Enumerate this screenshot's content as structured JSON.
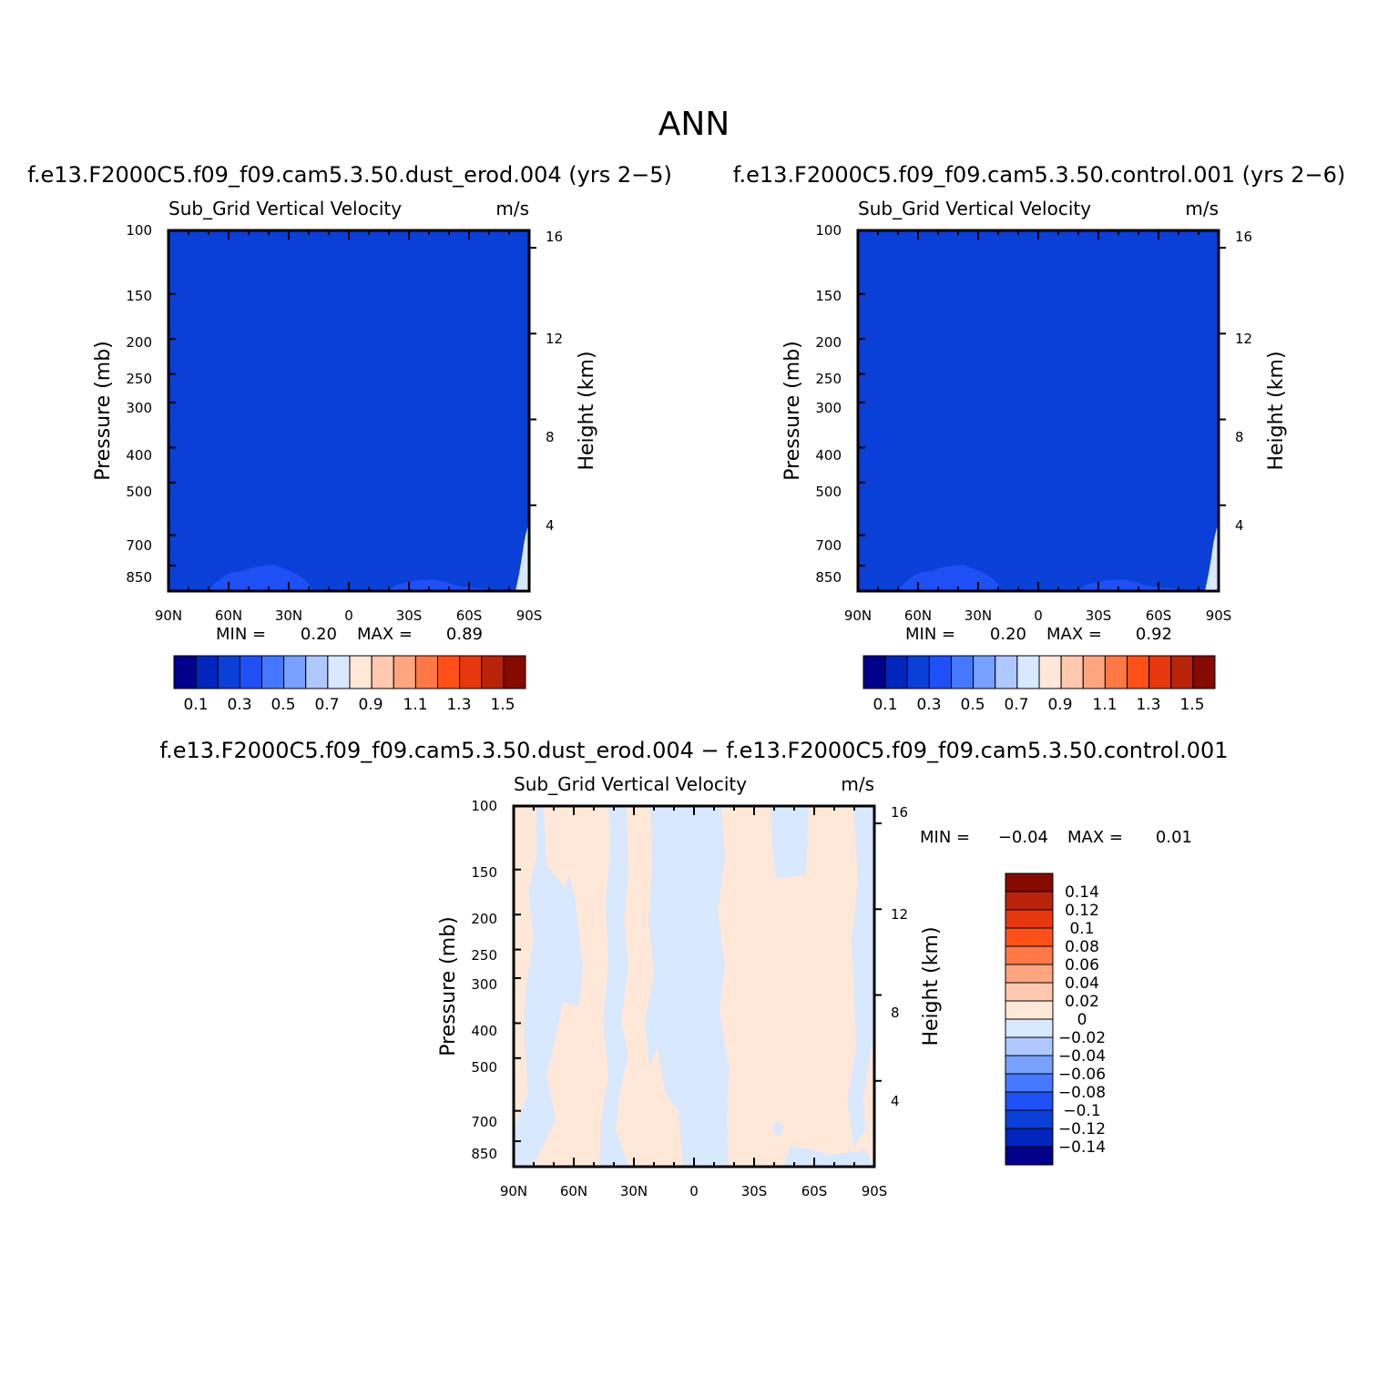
{
  "figure_title": "ANN",
  "chart_data": [
    {
      "type": "heatmap",
      "title": "f.e13.F2000C5.f09_f09.cam5.3.50.dust_erod.004 (yrs 2−5)",
      "variable": "Sub_Grid Vertical Velocity",
      "units": "m/s",
      "ylabel": "Pressure (mb)",
      "y2label": "Height (km)",
      "x_ticks": [
        "90N",
        "60N",
        "30N",
        "0",
        "30S",
        "60S",
        "90S"
      ],
      "y_ticks": [
        "100",
        "150",
        "200",
        "250",
        "300",
        "400",
        "500",
        "700",
        "850"
      ],
      "y2_ticks": [
        "16",
        "12",
        "8",
        "4"
      ],
      "ylim": [
        1000,
        100
      ],
      "y_scale": "log",
      "min_label": "MIN =",
      "min_value": "0.20",
      "max_label": "MAX =",
      "max_value": "0.89",
      "levels": [
        0.1,
        0.2,
        0.3,
        0.4,
        0.5,
        0.6,
        0.7,
        0.8,
        0.9,
        1.0,
        1.1,
        1.2,
        1.3,
        1.4,
        1.5
      ],
      "colorbar_labels": [
        "0.1",
        "0.3",
        "0.5",
        "0.7",
        "0.9",
        "1.1",
        "1.3",
        "1.5"
      ],
      "field_description": "nearly uniform 0.2-0.3 band; small 0.3-0.4 patches near the surface around 45N and 40S; values above 0.7 near 90S surface"
    },
    {
      "type": "heatmap",
      "title": "f.e13.F2000C5.f09_f09.cam5.3.50.control.001 (yrs 2−6)",
      "variable": "Sub_Grid Vertical Velocity",
      "units": "m/s",
      "ylabel": "Pressure (mb)",
      "y2label": "Height (km)",
      "x_ticks": [
        "90N",
        "60N",
        "30N",
        "0",
        "30S",
        "60S",
        "90S"
      ],
      "y_ticks": [
        "100",
        "150",
        "200",
        "250",
        "300",
        "400",
        "500",
        "700",
        "850"
      ],
      "y2_ticks": [
        "16",
        "12",
        "8",
        "4"
      ],
      "ylim": [
        1000,
        100
      ],
      "y_scale": "log",
      "min_label": "MIN =",
      "min_value": "0.20",
      "max_label": "MAX =",
      "max_value": "0.92",
      "levels": [
        0.1,
        0.2,
        0.3,
        0.4,
        0.5,
        0.6,
        0.7,
        0.8,
        0.9,
        1.0,
        1.1,
        1.2,
        1.3,
        1.4,
        1.5
      ],
      "colorbar_labels": [
        "0.1",
        "0.3",
        "0.5",
        "0.7",
        "0.9",
        "1.1",
        "1.3",
        "1.5"
      ],
      "field_description": "nearly uniform 0.2-0.3 band; small 0.3-0.4 patches near the surface around 45N and 40S; values above 0.7 near 90S surface"
    },
    {
      "type": "heatmap",
      "title": "f.e13.F2000C5.f09_f09.cam5.3.50.dust_erod.004 − f.e13.F2000C5.f09_f09.cam5.3.50.control.001",
      "variable": "Sub_Grid Vertical Velocity",
      "units": "m/s",
      "ylabel": "Pressure (mb)",
      "y2label": "Height (km)",
      "x_ticks": [
        "90N",
        "60N",
        "30N",
        "0",
        "30S",
        "60S",
        "90S"
      ],
      "y_ticks": [
        "100",
        "150",
        "200",
        "250",
        "300",
        "400",
        "500",
        "700",
        "850"
      ],
      "y2_ticks": [
        "16",
        "12",
        "8",
        "4"
      ],
      "ylim": [
        1000,
        100
      ],
      "y_scale": "log",
      "min_label": "MIN =",
      "min_value": "−0.04",
      "max_label": "MAX =",
      "max_value": "0.01",
      "levels": [
        -0.14,
        -0.12,
        -0.1,
        -0.08,
        -0.06,
        -0.04,
        -0.02,
        0,
        0.02,
        0.04,
        0.06,
        0.08,
        0.1,
        0.12,
        0.14
      ],
      "colorbar_labels": [
        "0.14",
        "0.12",
        "0.1",
        "0.08",
        "0.06",
        "0.04",
        "0.02",
        "0",
        "−0.02",
        "−0.04",
        "−0.06",
        "−0.08",
        "−0.1",
        "−0.12",
        "−0.14"
      ],
      "field_description": "mixture of -0.02-0 (light blue) and 0-0.02 (light orange) vertical stripes across all latitudes and levels"
    }
  ],
  "palette": [
    "#00008b",
    "#0026be",
    "#0a3fd8",
    "#1e50f5",
    "#4678ff",
    "#78a0ff",
    "#afc8ff",
    "#d8e8ff",
    "#ffe8d8",
    "#ffc8af",
    "#ffa57f",
    "#ff7846",
    "#ff5019",
    "#e6370f",
    "#b9230a",
    "#850a00"
  ]
}
